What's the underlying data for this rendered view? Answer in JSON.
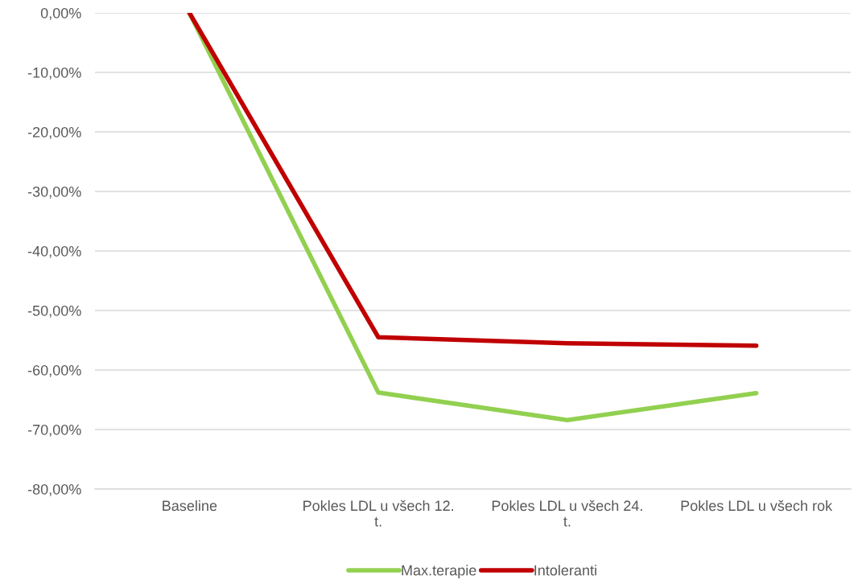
{
  "chart_data": {
    "type": "line",
    "categories": [
      "Baseline",
      "Pokles LDL u všech 12.\nt.",
      "Pokles LDL u všech 24.\nt.",
      "Pokles LDL u všech rok"
    ],
    "series": [
      {
        "name": "Max.terapie",
        "color": "#92d050",
        "values": [
          0,
          -63.8,
          -68.4,
          -63.9
        ]
      },
      {
        "name": "Intoleranti",
        "color": "#c00000",
        "values": [
          0,
          -54.5,
          -55.5,
          -55.9
        ]
      }
    ],
    "ylim": [
      -80,
      0
    ],
    "yticks": [
      {
        "value": -80,
        "label": "-80,00%"
      },
      {
        "value": -70,
        "label": "-70,00%"
      },
      {
        "value": -60,
        "label": "-60,00%"
      },
      {
        "value": -50,
        "label": "-50,00%"
      },
      {
        "value": -40,
        "label": "-40,00%"
      },
      {
        "value": -30,
        "label": "-30,00%"
      },
      {
        "value": -20,
        "label": "-20,00%"
      },
      {
        "value": -10,
        "label": "-10,00%"
      },
      {
        "value": 0,
        "label": "0,00%"
      }
    ],
    "grid": "y",
    "legend": "bottom",
    "marker": "none",
    "line_style": "solid"
  }
}
